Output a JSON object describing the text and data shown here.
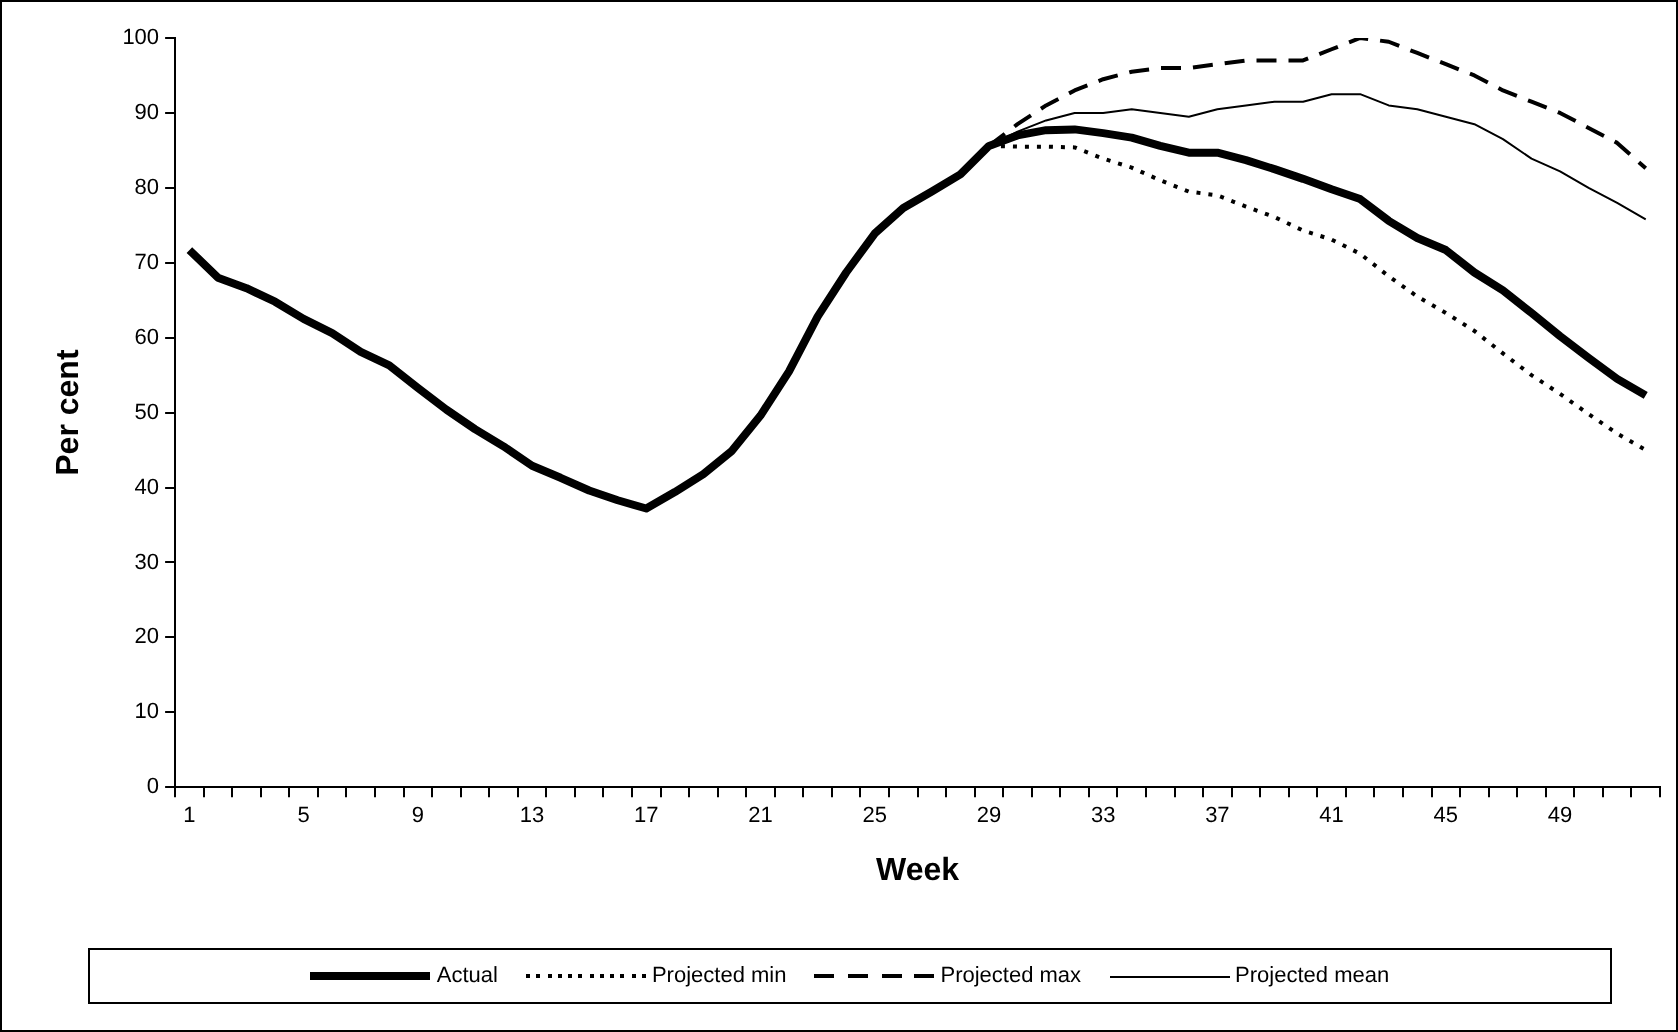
{
  "chart_data": {
    "type": "line",
    "xlabel": "Week",
    "ylabel": "Per cent",
    "categories": [
      "1",
      null,
      null,
      null,
      "5",
      null,
      null,
      null,
      "9",
      null,
      null,
      null,
      "13",
      null,
      null,
      null,
      "17",
      null,
      null,
      null,
      "21",
      null,
      null,
      null,
      "25",
      null,
      null,
      null,
      "29",
      null,
      null,
      null,
      "33",
      null,
      null,
      null,
      "37",
      null,
      null,
      null,
      "41",
      null,
      null,
      null,
      "45",
      null,
      null,
      null,
      "49",
      null,
      null,
      null
    ],
    "series": [
      {
        "name": "Actual",
        "color": "#000000",
        "line_style": "solid",
        "values": [
          71.7,
          68,
          66.6,
          64.8,
          62.5,
          60.6,
          58.1,
          56.3,
          53.3,
          50.4,
          47.8,
          45.5,
          42.9,
          41.3,
          39.6,
          38.3,
          37.2,
          39.4,
          41.8,
          44.9,
          49.6,
          55.5,
          62.8,
          68.7,
          73.9,
          77.3,
          79.5,
          81.8,
          85.6,
          87,
          87.7,
          87.8,
          87.3,
          86.7,
          85.6,
          84.7,
          84.7,
          83.7,
          82.5,
          81.2,
          79.8,
          78.5,
          75.6,
          73.3,
          71.7,
          68.7,
          66.3,
          63.3,
          60.2,
          57.3,
          54.5,
          52.3
        ]
      },
      {
        "name": "Projected min",
        "color": "#000000",
        "line_style": "dotted",
        "values": [
          null,
          null,
          null,
          null,
          null,
          null,
          null,
          null,
          null,
          null,
          null,
          null,
          null,
          null,
          null,
          null,
          null,
          null,
          null,
          null,
          null,
          null,
          null,
          null,
          null,
          null,
          null,
          null,
          85.6,
          85.5,
          85.5,
          85.4,
          83.9,
          82.7,
          81,
          79.5,
          79,
          77.5,
          76.1,
          74.3,
          73.1,
          71.2,
          68.2,
          65.5,
          63.3,
          60.9,
          57.9,
          55,
          52.5,
          49.8,
          47.2,
          45
        ]
      },
      {
        "name": "Projected max",
        "color": "#000000",
        "line_style": "dashed",
        "values": [
          null,
          null,
          null,
          null,
          null,
          null,
          null,
          null,
          null,
          null,
          null,
          null,
          null,
          null,
          null,
          null,
          null,
          null,
          null,
          null,
          null,
          null,
          null,
          null,
          null,
          null,
          null,
          null,
          85.6,
          88.5,
          91,
          93,
          94.5,
          95.5,
          96,
          96,
          96.5,
          97,
          97,
          97,
          98.5,
          100,
          99.5,
          98,
          96.5,
          95,
          93,
          91.5,
          90,
          88,
          86,
          82.6
        ]
      },
      {
        "name": "Projected mean",
        "color": "#000000",
        "line_style": "solid",
        "values": [
          null,
          null,
          null,
          null,
          null,
          null,
          null,
          null,
          null,
          null,
          null,
          null,
          null,
          null,
          null,
          null,
          null,
          null,
          null,
          null,
          null,
          null,
          null,
          null,
          null,
          null,
          null,
          null,
          85.6,
          87.5,
          89,
          90,
          90,
          90.5,
          90,
          89.5,
          90.5,
          91,
          91.5,
          91.5,
          92.5,
          92.5,
          91,
          90.5,
          89.5,
          88.5,
          86.5,
          83.9,
          82.2,
          80,
          78,
          75.8
        ]
      }
    ],
    "ylim": [
      0,
      100
    ],
    "yticks": [
      0,
      10,
      20,
      30,
      40,
      50,
      60,
      70,
      80,
      90,
      100
    ],
    "grid": false,
    "legend": "bottom",
    "marker": "none"
  }
}
